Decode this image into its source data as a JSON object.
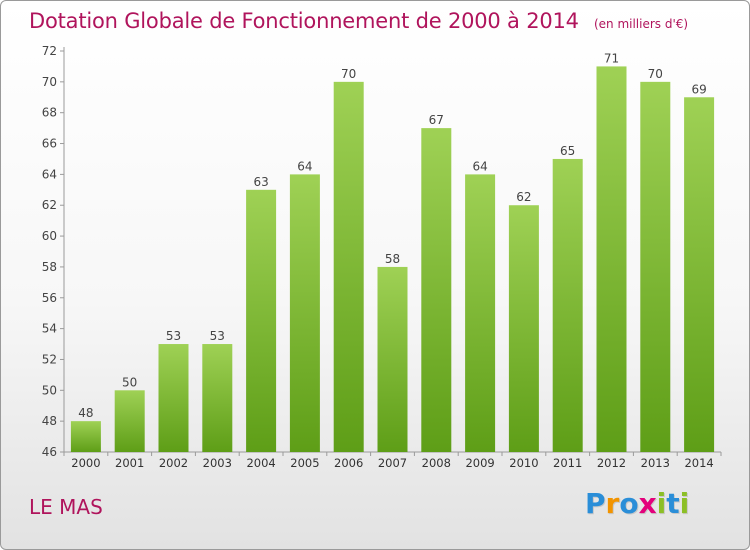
{
  "chart_data": {
    "type": "bar",
    "title": "Dotation Globale de Fonctionnement de 2000 à 2014",
    "subtitle": "(en milliers d'€)",
    "categories": [
      "2000",
      "2001",
      "2002",
      "2003",
      "2004",
      "2005",
      "2006",
      "2007",
      "2008",
      "2009",
      "2010",
      "2011",
      "2012",
      "2013",
      "2014"
    ],
    "values": [
      48,
      50,
      53,
      53,
      63,
      64,
      70,
      58,
      67,
      64,
      62,
      65,
      71,
      70,
      69
    ],
    "ylim": [
      46,
      72
    ],
    "yticks": [
      46,
      48,
      50,
      52,
      54,
      56,
      58,
      60,
      62,
      64,
      66,
      68,
      70,
      72
    ],
    "grid": false,
    "bar_color": "#8cc63f",
    "bar_color_dark": "#5e9e17"
  },
  "footer": {
    "commune": "LE MAS"
  },
  "logo": {
    "letters": [
      "P",
      "r",
      "o",
      "x",
      "i",
      "t",
      "i"
    ],
    "colors": [
      "#2a8ed8",
      "#f29400",
      "#2a8ed8",
      "#e3007b",
      "#8cbf26",
      "#2a8ed8",
      "#8cbf26"
    ]
  },
  "colors": {
    "accent": "#b0145c"
  }
}
